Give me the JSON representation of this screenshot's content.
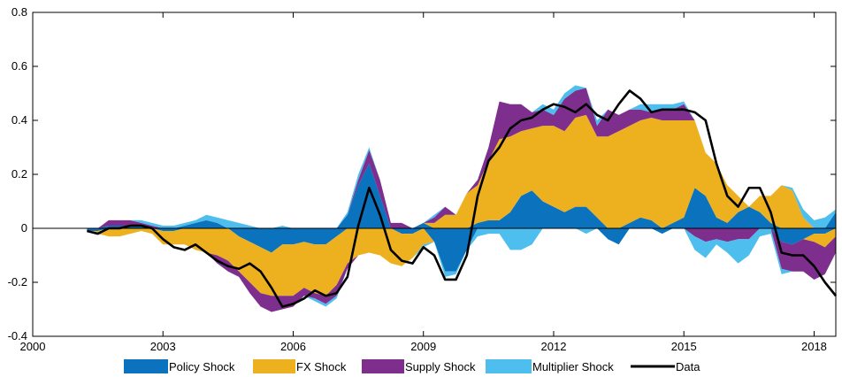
{
  "chart_data": {
    "type": "area",
    "title": "",
    "xlabel": "",
    "ylabel": "",
    "xlim": [
      2000,
      2018.5
    ],
    "ylim": [
      -0.4,
      0.8
    ],
    "x_ticks": [
      "2000",
      "2003",
      "2006",
      "2009",
      "2012",
      "2015",
      "2018"
    ],
    "y_ticks": [
      "-0.4",
      "-0.2",
      "0",
      "0.2",
      "0.4",
      "0.6",
      "0.8"
    ],
    "grid": false,
    "legend_position": "bottom",
    "x": [
      2001.25,
      2001.5,
      2001.75,
      2002.0,
      2002.25,
      2002.5,
      2002.75,
      2003.0,
      2003.25,
      2003.5,
      2003.75,
      2004.0,
      2004.25,
      2004.5,
      2004.75,
      2005.0,
      2005.25,
      2005.5,
      2005.75,
      2006.0,
      2006.25,
      2006.5,
      2006.75,
      2007.0,
      2007.25,
      2007.5,
      2007.75,
      2008.0,
      2008.25,
      2008.5,
      2008.75,
      2009.0,
      2009.25,
      2009.5,
      2009.75,
      2010.0,
      2010.25,
      2010.5,
      2010.75,
      2011.0,
      2011.25,
      2011.5,
      2011.75,
      2012.0,
      2012.25,
      2012.5,
      2012.75,
      2013.0,
      2013.25,
      2013.5,
      2013.75,
      2014.0,
      2014.25,
      2014.5,
      2014.75,
      2015.0,
      2015.25,
      2015.5,
      2015.75,
      2016.0,
      2016.25,
      2016.5,
      2016.75,
      2017.0,
      2017.25,
      2017.5,
      2017.75,
      2018.0,
      2018.25,
      2018.5
    ],
    "series": [
      {
        "name": "Policy Shock",
        "color": "#0b72bd",
        "values": [
          -0.01,
          -0.01,
          0.01,
          0.01,
          0.01,
          0.01,
          0.0,
          -0.01,
          -0.01,
          0.01,
          0.02,
          0.03,
          0.02,
          0.0,
          -0.03,
          -0.05,
          -0.07,
          -0.09,
          -0.06,
          -0.06,
          -0.05,
          -0.06,
          -0.06,
          -0.03,
          0.05,
          0.16,
          0.24,
          0.12,
          0.0,
          -0.02,
          -0.02,
          0.02,
          -0.05,
          -0.16,
          -0.16,
          -0.08,
          0.02,
          0.03,
          0.03,
          0.06,
          0.12,
          0.14,
          0.1,
          0.08,
          0.06,
          0.08,
          0.08,
          0.04,
          -0.04,
          -0.06,
          0.02,
          0.04,
          0.03,
          -0.02,
          0.02,
          0.04,
          0.15,
          0.12,
          0.04,
          0.02,
          0.06,
          0.08,
          0.06,
          0.02,
          -0.05,
          -0.06,
          -0.04,
          -0.02,
          -0.02,
          0.06
        ]
      },
      {
        "name": "FX Shock",
        "color": "#edb120",
        "values": [
          0.0,
          -0.01,
          -0.03,
          -0.03,
          -0.02,
          -0.01,
          -0.02,
          -0.05,
          -0.05,
          -0.06,
          -0.08,
          -0.09,
          -0.1,
          -0.12,
          -0.13,
          -0.15,
          -0.17,
          -0.16,
          -0.19,
          -0.19,
          -0.17,
          -0.18,
          -0.19,
          -0.18,
          -0.13,
          -0.1,
          -0.09,
          -0.1,
          -0.13,
          -0.12,
          -0.09,
          -0.06,
          0.02,
          0.05,
          0.05,
          0.13,
          0.14,
          0.22,
          0.3,
          0.28,
          0.24,
          0.23,
          0.28,
          0.3,
          0.3,
          0.33,
          0.34,
          0.3,
          0.34,
          0.36,
          0.36,
          0.36,
          0.38,
          0.4,
          0.38,
          0.36,
          0.25,
          0.16,
          0.2,
          0.14,
          0.06,
          0.0,
          0.06,
          0.1,
          0.16,
          0.14,
          0.04,
          -0.03,
          -0.05,
          -0.03
        ]
      },
      {
        "name": "Supply Shock",
        "color": "#7e2f8e",
        "values": [
          0.0,
          0.0,
          0.02,
          0.02,
          0.02,
          0.01,
          0.01,
          0.0,
          0.0,
          0.0,
          0.0,
          0.0,
          -0.03,
          -0.04,
          -0.02,
          -0.04,
          -0.05,
          -0.06,
          -0.05,
          -0.04,
          -0.03,
          -0.02,
          -0.03,
          -0.04,
          -0.02,
          0.02,
          0.05,
          0.06,
          0.02,
          0.02,
          0.0,
          0.0,
          0.02,
          0.03,
          0.0,
          0.0,
          0.02,
          0.05,
          0.14,
          0.12,
          0.1,
          0.06,
          0.06,
          0.04,
          0.12,
          0.1,
          0.1,
          0.04,
          0.1,
          0.06,
          0.06,
          0.04,
          0.02,
          0.04,
          0.04,
          0.06,
          -0.03,
          -0.05,
          -0.04,
          -0.05,
          -0.04,
          -0.04,
          0.0,
          0.0,
          -0.1,
          -0.1,
          -0.12,
          -0.14,
          -0.1,
          -0.06
        ]
      },
      {
        "name": "Multiplier Shock",
        "color": "#4dbeee",
        "values": [
          0.0,
          0.0,
          0.0,
          0.0,
          0.0,
          0.01,
          0.01,
          0.01,
          0.01,
          0.01,
          0.01,
          0.02,
          0.02,
          0.03,
          0.02,
          0.01,
          0.0,
          0.0,
          0.01,
          0.0,
          0.0,
          -0.01,
          -0.01,
          -0.01,
          0.01,
          0.02,
          0.01,
          0.0,
          0.0,
          0.0,
          0.0,
          -0.01,
          0.01,
          -0.02,
          -0.01,
          0.0,
          -0.03,
          -0.02,
          -0.02,
          -0.08,
          -0.08,
          -0.06,
          0.02,
          0.02,
          0.02,
          0.02,
          -0.02,
          0.02,
          0.0,
          0.0,
          0.0,
          0.02,
          0.03,
          0.02,
          0.02,
          0.01,
          -0.05,
          -0.06,
          -0.02,
          -0.04,
          -0.09,
          -0.06,
          -0.03,
          -0.02,
          -0.02,
          0.01,
          0.03,
          0.03,
          0.04,
          0.01
        ]
      },
      {
        "name": "Data",
        "color": "#000000",
        "values": [
          -0.01,
          -0.02,
          0.0,
          0.0,
          0.01,
          0.01,
          0.0,
          -0.04,
          -0.07,
          -0.08,
          -0.06,
          -0.09,
          -0.12,
          -0.14,
          -0.15,
          -0.13,
          -0.16,
          -0.22,
          -0.29,
          -0.28,
          -0.26,
          -0.23,
          -0.25,
          -0.24,
          -0.18,
          0.01,
          0.15,
          0.05,
          -0.08,
          -0.12,
          -0.13,
          -0.07,
          -0.1,
          -0.19,
          -0.19,
          -0.1,
          0.12,
          0.25,
          0.3,
          0.37,
          0.4,
          0.41,
          0.44,
          0.46,
          0.45,
          0.43,
          0.46,
          0.42,
          0.4,
          0.46,
          0.51,
          0.48,
          0.43,
          0.44,
          0.44,
          0.44,
          0.43,
          0.4,
          0.24,
          0.12,
          0.08,
          0.15,
          0.15,
          0.06,
          -0.09,
          -0.1,
          -0.1,
          -0.14,
          -0.2,
          -0.25
        ]
      }
    ]
  }
}
